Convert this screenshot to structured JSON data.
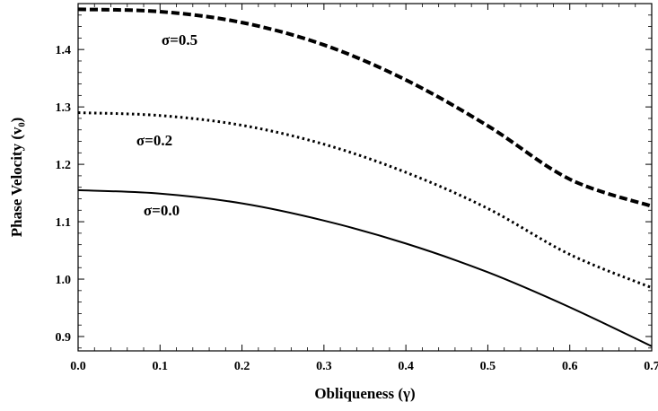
{
  "chart_data": {
    "type": "line",
    "xlabel": "Obliqueness (γ)",
    "ylabel": "Phase Velocity (v₀)",
    "xlim": [
      0,
      0.7
    ],
    "ylim": [
      0.875,
      1.48
    ],
    "xticks": [
      0.0,
      0.1,
      0.2,
      0.3,
      0.4,
      0.5,
      0.6,
      0.7
    ],
    "xtick_labels": [
      "0.0",
      "0.1",
      "0.2",
      "0.3",
      "0.4",
      "0.5",
      "0.6",
      "0.7"
    ],
    "yticks": [
      0.9,
      1.0,
      1.1,
      1.2,
      1.3,
      1.4
    ],
    "ytick_labels": [
      "0.9",
      "1.0",
      "1.1",
      "1.2",
      "1.3",
      "1.4"
    ],
    "grid": false,
    "legend": "inline labels",
    "x": [
      0.0,
      0.1,
      0.2,
      0.3,
      0.4,
      0.5,
      0.6,
      0.7
    ],
    "series": [
      {
        "name": "σ=0.5",
        "style": "dashed",
        "values": [
          1.47,
          1.466,
          1.447,
          1.408,
          1.347,
          1.267,
          1.174,
          1.127
        ]
      },
      {
        "name": "σ=0.2",
        "style": "dotted",
        "values": [
          1.29,
          1.285,
          1.268,
          1.235,
          1.186,
          1.123,
          1.043,
          0.985
        ]
      },
      {
        "name": "σ=0.0",
        "style": "solid",
        "values": [
          1.155,
          1.149,
          1.132,
          1.102,
          1.062,
          1.012,
          0.951,
          0.883
        ]
      }
    ]
  }
}
